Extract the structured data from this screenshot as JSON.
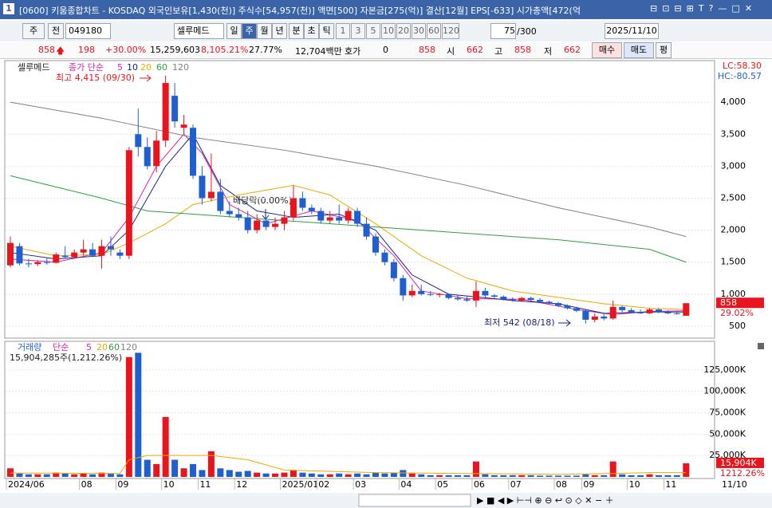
{
  "window": {
    "title": "[0600] 키움종합차트 - KOSDAQ 외국인보유[1,430(천)] 주식수[54,957(천)] 액면[500] 자본금[275(억)] 결산[12월] EPS[-633] 시가총액[472(억"
  },
  "toolbar": {
    "period": "주",
    "mode": "전",
    "code": "049180",
    "name": "셀루메드",
    "intervals": [
      "일",
      "주",
      "월",
      "년",
      "분",
      "초",
      "틱"
    ],
    "steps": [
      "1",
      "3",
      "5",
      "10",
      "20",
      "30",
      "60",
      "120"
    ],
    "count": "75",
    "total": "/300",
    "date": "2025/11/10"
  },
  "info": {
    "price": "858",
    "change": "198",
    "rate": "+30.00%",
    "volume": "15,259,603",
    "volume_rate": "8,105.21%",
    "turnover": "27.77%",
    "amount": "12,704백만",
    "quote_label": "호가",
    "quote": "0",
    "ask": "858",
    "open_label": "시",
    "open": "662",
    "high_label": "고",
    "high": "858",
    "low_label": "저",
    "low": "662",
    "buy": "매수",
    "sell": "매도",
    "avg": "평"
  },
  "chart_data": [
    {
      "type": "candlestick",
      "name": "셀루메드",
      "ma_label": "종가 단순",
      "open": [
        1450,
        1750,
        1480,
        1470,
        1500,
        1490,
        1600,
        1580,
        1650,
        1700,
        1600,
        1750,
        1650,
        1600,
        3500,
        3300,
        3000,
        3400,
        4100,
        3600,
        3600,
        2850,
        2500,
        2600,
        2300,
        2250,
        2200,
        2000,
        2150,
        2050,
        2100,
        2200,
        2500,
        2350,
        2300,
        2150,
        2200,
        2150,
        2300,
        2100,
        1900,
        1650,
        1500,
        1250,
        980,
        1050,
        1000,
        990,
        1000,
        940,
        920,
        900,
        1050,
        980,
        960,
        920,
        900,
        940,
        910,
        880,
        860,
        820,
        780,
        740,
        600,
        650,
        620,
        800,
        750,
        720,
        700,
        760,
        720,
        700,
        662
      ],
      "high": [
        1900,
        1800,
        1550,
        1530,
        1560,
        1650,
        1750,
        1700,
        1850,
        1800,
        1850,
        1900,
        1700,
        3300,
        3900,
        3450,
        3550,
        4415,
        4300,
        3800,
        3650,
        3000,
        3200,
        2800,
        2450,
        2350,
        2300,
        2250,
        2200,
        2200,
        2300,
        2700,
        2600,
        2400,
        2350,
        2300,
        2400,
        2350,
        2350,
        2200,
        1950,
        1700,
        1550,
        1300,
        1150,
        1150,
        1050,
        1020,
        1010,
        980,
        960,
        1200,
        1100,
        1000,
        980,
        950,
        960,
        960,
        940,
        900,
        880,
        840,
        800,
        760,
        700,
        700,
        900,
        820,
        780,
        760,
        780,
        780,
        750,
        730,
        858
      ],
      "low": [
        1420,
        1450,
        1420,
        1440,
        1460,
        1480,
        1550,
        1560,
        1600,
        1580,
        1400,
        1600,
        1550,
        1550,
        3150,
        2950,
        2900,
        3300,
        3600,
        3500,
        2800,
        2400,
        2450,
        2250,
        2200,
        2150,
        1950,
        1950,
        2000,
        2000,
        2000,
        2150,
        2300,
        2250,
        2100,
        2100,
        2100,
        2100,
        2050,
        1850,
        1600,
        1450,
        1200,
        900,
        950,
        980,
        970,
        950,
        920,
        900,
        880,
        800,
        950,
        940,
        900,
        880,
        880,
        900,
        860,
        840,
        800,
        760,
        720,
        542,
        560,
        590,
        600,
        720,
        700,
        690,
        690,
        700,
        690,
        680,
        662
      ],
      "close": [
        1800,
        1480,
        1470,
        1500,
        1490,
        1620,
        1580,
        1650,
        1700,
        1600,
        1750,
        1700,
        1600,
        3250,
        3300,
        3000,
        3400,
        4300,
        3700,
        3650,
        2850,
        2500,
        2600,
        2300,
        2250,
        2200,
        2000,
        2150,
        2050,
        2100,
        2200,
        2500,
        2350,
        2300,
        2150,
        2200,
        2150,
        2300,
        2100,
        1900,
        1650,
        1500,
        1250,
        980,
        1050,
        1000,
        990,
        1000,
        940,
        920,
        900,
        1050,
        980,
        960,
        920,
        900,
        940,
        910,
        880,
        860,
        820,
        780,
        740,
        600,
        650,
        620,
        800,
        750,
        720,
        700,
        760,
        720,
        700,
        690,
        858
      ],
      "up_color": "#e8141e",
      "down_color": "#1f5fd0",
      "lines": [
        {
          "name": "5",
          "color": "#d81fb0",
          "x": [
            0,
            5,
            10,
            13,
            16,
            19,
            21,
            24,
            28,
            33,
            38,
            42,
            45,
            50,
            56,
            62,
            66,
            70,
            74
          ],
          "values": [
            1550,
            1500,
            1650,
            2200,
            3000,
            3500,
            3200,
            2400,
            2100,
            2300,
            2150,
            1600,
            1050,
            930,
            920,
            760,
            680,
            730,
            740
          ]
        },
        {
          "name": "10",
          "color": "#1a237e",
          "x": [
            0,
            5,
            10,
            13,
            17,
            20,
            23,
            27,
            31,
            36,
            40,
            44,
            48,
            55,
            60,
            65,
            70,
            74
          ],
          "values": [
            1650,
            1550,
            1600,
            2000,
            3000,
            3500,
            2700,
            2300,
            2200,
            2250,
            2000,
            1300,
            1000,
            900,
            850,
            700,
            720,
            720
          ]
        },
        {
          "name": "20",
          "color": "#f0a800",
          "x": [
            0,
            5,
            10,
            13,
            17,
            20,
            25,
            31,
            35,
            40,
            45,
            50,
            55,
            60,
            65,
            70,
            74
          ],
          "values": [
            1750,
            1600,
            1620,
            1800,
            2100,
            2400,
            2550,
            2700,
            2550,
            2100,
            1600,
            1250,
            1050,
            950,
            850,
            780,
            760
          ]
        },
        {
          "name": "60",
          "color": "#2e9e3e",
          "x": [
            0,
            10,
            15,
            20,
            30,
            40,
            50,
            60,
            70,
            74
          ],
          "values": [
            2850,
            2500,
            2300,
            2250,
            2150,
            2050,
            1950,
            1850,
            1700,
            1500
          ]
        },
        {
          "name": "120",
          "color": "#808080",
          "x": [
            0,
            10,
            20,
            30,
            40,
            50,
            60,
            70,
            74
          ],
          "values": [
            4000,
            3750,
            3450,
            3250,
            3000,
            2700,
            2350,
            2050,
            1900
          ]
        }
      ],
      "ylim": [
        300,
        4600
      ],
      "yticks": [
        500,
        {
          "value": 1000,
          "label": "1,000"
        },
        {
          "value": 1500,
          "label": "1,500"
        },
        {
          "value": 2000,
          "label": "2,000"
        },
        {
          "value": 2500,
          "label": "2,500"
        },
        {
          "value": 3000,
          "label": "3,000"
        },
        {
          "value": 3500,
          "label": "3,500"
        },
        {
          "value": 4000,
          "label": "4,000"
        }
      ],
      "xticks": [
        {
          "value": 0,
          "label": "2024/06"
        },
        {
          "value": 8,
          "label": "08"
        },
        {
          "value": 12,
          "label": "09"
        },
        {
          "value": 17,
          "label": "10"
        },
        {
          "value": 21,
          "label": "11"
        },
        {
          "value": 25,
          "label": "12"
        },
        {
          "value": 30,
          "label": "2025/01"
        },
        {
          "value": 34,
          "label": "02"
        },
        {
          "value": 38,
          "label": "03"
        },
        {
          "value": 43,
          "label": "04"
        },
        {
          "value": 47,
          "label": "05"
        },
        {
          "value": 51,
          "label": "06"
        },
        {
          "value": 55,
          "label": "07"
        },
        {
          "value": 60,
          "label": "08"
        },
        {
          "value": 63,
          "label": "09"
        },
        {
          "value": 68,
          "label": "10"
        },
        {
          "value": 72,
          "label": "11"
        }
      ],
      "end_date": "11/10",
      "max_label": "최고 4,415 (09/30)",
      "min_label": "최저 542 (08/18)",
      "event_label": "배당락(0.00%)",
      "lc": "LC:58.30",
      "hc": "HC:-80.57",
      "last_label": "858",
      "last_rate": "29.02%"
    },
    {
      "type": "bar",
      "name": "거래량",
      "ma_label": "단순",
      "ma_names": [
        "5",
        "20",
        "60",
        "120"
      ],
      "summary": "15,904,285주(1,212.26%)",
      "values": [
        10000,
        4000,
        3000,
        3000,
        3000,
        5000,
        4000,
        3000,
        4000,
        3000,
        5000,
        4000,
        3000,
        140000,
        145000,
        20000,
        15000,
        70000,
        20000,
        10000,
        15000,
        8000,
        30000,
        10000,
        8000,
        6000,
        7000,
        5000,
        4000,
        4000,
        5000,
        8000,
        5000,
        4000,
        3000,
        3000,
        4000,
        3000,
        4000,
        3000,
        5000,
        4000,
        5000,
        8000,
        4000,
        3000,
        2000,
        2000,
        2000,
        2000,
        2000,
        18000,
        3000,
        2000,
        2000,
        2000,
        2000,
        2000,
        1500,
        1500,
        1500,
        1500,
        1500,
        3000,
        2000,
        2000,
        18000,
        3000,
        2000,
        2000,
        3000,
        2000,
        2000,
        2000,
        15904
      ],
      "lines": [
        {
          "name": "20",
          "color": "#f0a800",
          "x": [
            0,
            12,
            13,
            15,
            18,
            22,
            26,
            30,
            40,
            50,
            60,
            66,
            70,
            74
          ],
          "values": [
            4500,
            4000,
            20000,
            25000,
            25000,
            25000,
            20000,
            8000,
            5000,
            4000,
            3000,
            4000,
            5000,
            5000
          ]
        }
      ],
      "ylim": [
        0,
        150000
      ],
      "yticks": [
        {
          "value": 25000,
          "label": "25,000K"
        },
        {
          "value": 50000,
          "label": "50,000K"
        },
        {
          "value": 75000,
          "label": "75,000K"
        },
        {
          "value": 100000,
          "label": "100,000K"
        },
        {
          "value": 125000,
          "label": "125,000K"
        }
      ],
      "last_label": "15,904K",
      "last_rate": "1212.26%"
    }
  ]
}
